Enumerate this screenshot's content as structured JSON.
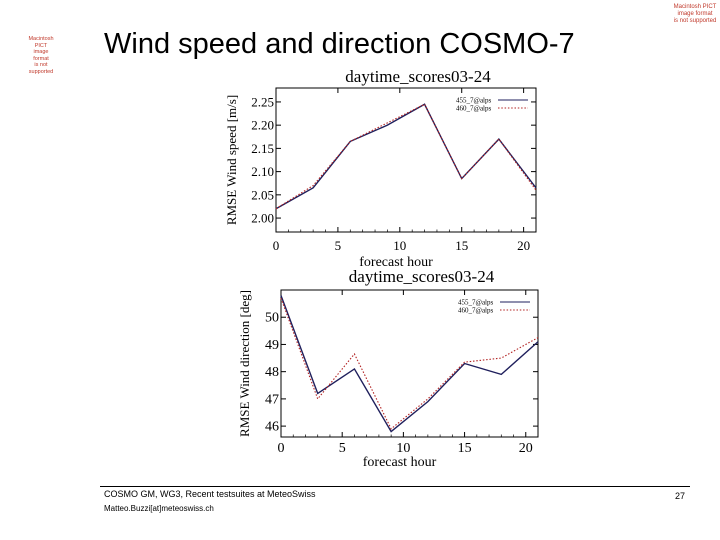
{
  "slide": {
    "title": "Wind speed and direction COSMO-7",
    "pict_left": [
      "Macintosh PICT",
      "image format",
      "is not supported"
    ],
    "pict_right": [
      "Macintosh PICT",
      "image format",
      "is not supported"
    ],
    "footer": {
      "text": "COSMO GM, WG3, Recent testsuites at MeteoSwiss",
      "email": "Matteo.Buzzi[at]meteoswiss.ch",
      "page": "27"
    }
  },
  "chart_data": [
    {
      "type": "line",
      "title": "daytime_scores03-24",
      "xlabel": "forecast hour",
      "ylabel": "RMSE Wind speed [m/s]",
      "xlim": [
        0,
        21
      ],
      "ylim": [
        1.97,
        2.28
      ],
      "xticks": [
        0,
        5,
        10,
        15,
        20
      ],
      "xtick_labels": [
        "0",
        "5",
        "10",
        "15",
        "20"
      ],
      "yticks": [
        2.0,
        2.05,
        2.1,
        2.15,
        2.2,
        2.25
      ],
      "ytick_labels": [
        "2.00",
        "2.05",
        "2.10",
        "2.15",
        "2.20",
        "2.25"
      ],
      "legend": "top-right",
      "series": [
        {
          "name": "455_7@alps",
          "style": "solid",
          "color": "#1f1f5c",
          "x": [
            0,
            3,
            6,
            9,
            12,
            15,
            18,
            21
          ],
          "y": [
            2.02,
            2.065,
            2.165,
            2.2,
            2.245,
            2.085,
            2.17,
            2.065
          ]
        },
        {
          "name": "460_7@alps",
          "style": "dotted",
          "color": "#b22222",
          "x": [
            0,
            3,
            6,
            9,
            12,
            15,
            18,
            21
          ],
          "y": [
            2.02,
            2.07,
            2.165,
            2.205,
            2.245,
            2.085,
            2.17,
            2.06
          ]
        }
      ]
    },
    {
      "type": "line",
      "title": "daytime_scores03-24",
      "xlabel": "forecast hour",
      "ylabel": "RMSE Wind direction [deg]",
      "xlim": [
        0,
        21
      ],
      "ylim": [
        45.6,
        51.0
      ],
      "xticks": [
        0,
        5,
        10,
        15,
        20
      ],
      "xtick_labels": [
        "0",
        "5",
        "10",
        "15",
        "20"
      ],
      "yticks": [
        46,
        47,
        48,
        49,
        50
      ],
      "ytick_labels": [
        "46",
        "47",
        "48",
        "49",
        "50"
      ],
      "legend": "top-right",
      "series": [
        {
          "name": "455_7@alps",
          "style": "solid",
          "color": "#1f1f5c",
          "x": [
            0,
            3,
            6,
            9,
            12,
            15,
            18,
            21
          ],
          "y": [
            50.8,
            47.2,
            48.1,
            45.8,
            46.9,
            48.3,
            47.9,
            49.1
          ]
        },
        {
          "name": "460_7@alps",
          "style": "dotted",
          "color": "#b22222",
          "x": [
            0,
            3,
            6,
            9,
            12,
            15,
            18,
            21
          ],
          "y": [
            50.7,
            47.0,
            48.65,
            45.9,
            47.0,
            48.35,
            48.5,
            49.25
          ]
        }
      ]
    }
  ]
}
